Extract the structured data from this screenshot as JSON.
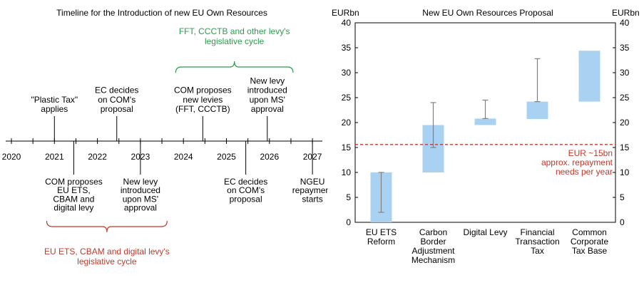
{
  "timeline": {
    "title": "Timeline for the Introduction of new EU Own Resources",
    "years": [
      "2020",
      "2021",
      "2022",
      "2023",
      "2024",
      "2025",
      "2026",
      "2027"
    ],
    "events_above": [
      {
        "lines": [
          "\"Plastic Tax\"",
          "applies"
        ],
        "year_pos": 2021.0
      },
      {
        "lines": [
          "EC decides",
          "on COM's",
          "proposal"
        ],
        "year_pos": 2022.45
      },
      {
        "lines": [
          "COM proposes",
          "new levies",
          "(FFT,  CCCTB)"
        ],
        "year_pos": 2024.45
      },
      {
        "lines": [
          "New levy",
          "introduced",
          "upon MS'",
          "approval"
        ],
        "year_pos": 2025.95
      }
    ],
    "events_below": [
      {
        "lines": [
          "COM proposes",
          "EU ETS,",
          "CBAM  and",
          "digital levy"
        ],
        "year_pos": 2021.45
      },
      {
        "lines": [
          "New levy",
          "introduced",
          "upon MS'",
          "approval"
        ],
        "year_pos": 2023.0
      },
      {
        "lines": [
          "EC decides",
          "on COM's",
          "proposal"
        ],
        "year_pos": 2025.45
      },
      {
        "lines": [
          "NGEU",
          "repayment",
          "starts"
        ],
        "year_pos": 2027.0
      }
    ],
    "green_cycle": {
      "lines": [
        "FFT,  CCCTB and other levy's",
        "legislative cycle"
      ],
      "from": 2023.82,
      "to": 2026.55,
      "color": "#2e9a4e"
    },
    "red_cycle": {
      "lines": [
        "EU ETS, CBAM  and digital levy's",
        "legislative cycle"
      ],
      "from": 2020.82,
      "to": 2023.62,
      "color": "#c0392b"
    }
  },
  "chart_data": {
    "type": "bar",
    "title": "New EU Own Resources Proposal",
    "ylabel": "EURbn",
    "ylim": [
      0,
      40
    ],
    "yticks": [
      0,
      5,
      10,
      15,
      20,
      25,
      30,
      35,
      40
    ],
    "categories": [
      [
        "EU ETS",
        "Reform"
      ],
      [
        "Carbon",
        "Border",
        "Adjustment",
        "Mechanism"
      ],
      [
        "Digital Levy"
      ],
      [
        "Financial",
        "Transaction",
        "Tax"
      ],
      [
        "Common",
        "Corporate",
        "Tax Base"
      ]
    ],
    "ranges": [
      {
        "low": 0,
        "high": 10,
        "err_low": 2,
        "err_high": 10
      },
      {
        "low": 10,
        "high": 19.5,
        "err_low": 15,
        "err_high": 24
      },
      {
        "low": 19.5,
        "high": 20.8,
        "err_low": 20.8,
        "err_high": 24.5
      },
      {
        "low": 20.7,
        "high": 24.2,
        "err_low": 24.2,
        "err_high": 32.8
      },
      {
        "low": 24.2,
        "high": 34.4,
        "err_low": null,
        "err_high": null
      }
    ],
    "reference_line": {
      "value": 15.6,
      "labels": [
        "EUR ~15bn",
        "approx. repayment",
        "needs per year"
      ],
      "color": "#c0392b"
    },
    "bar_color": "#a9d1f2",
    "error_color": "#808080"
  }
}
